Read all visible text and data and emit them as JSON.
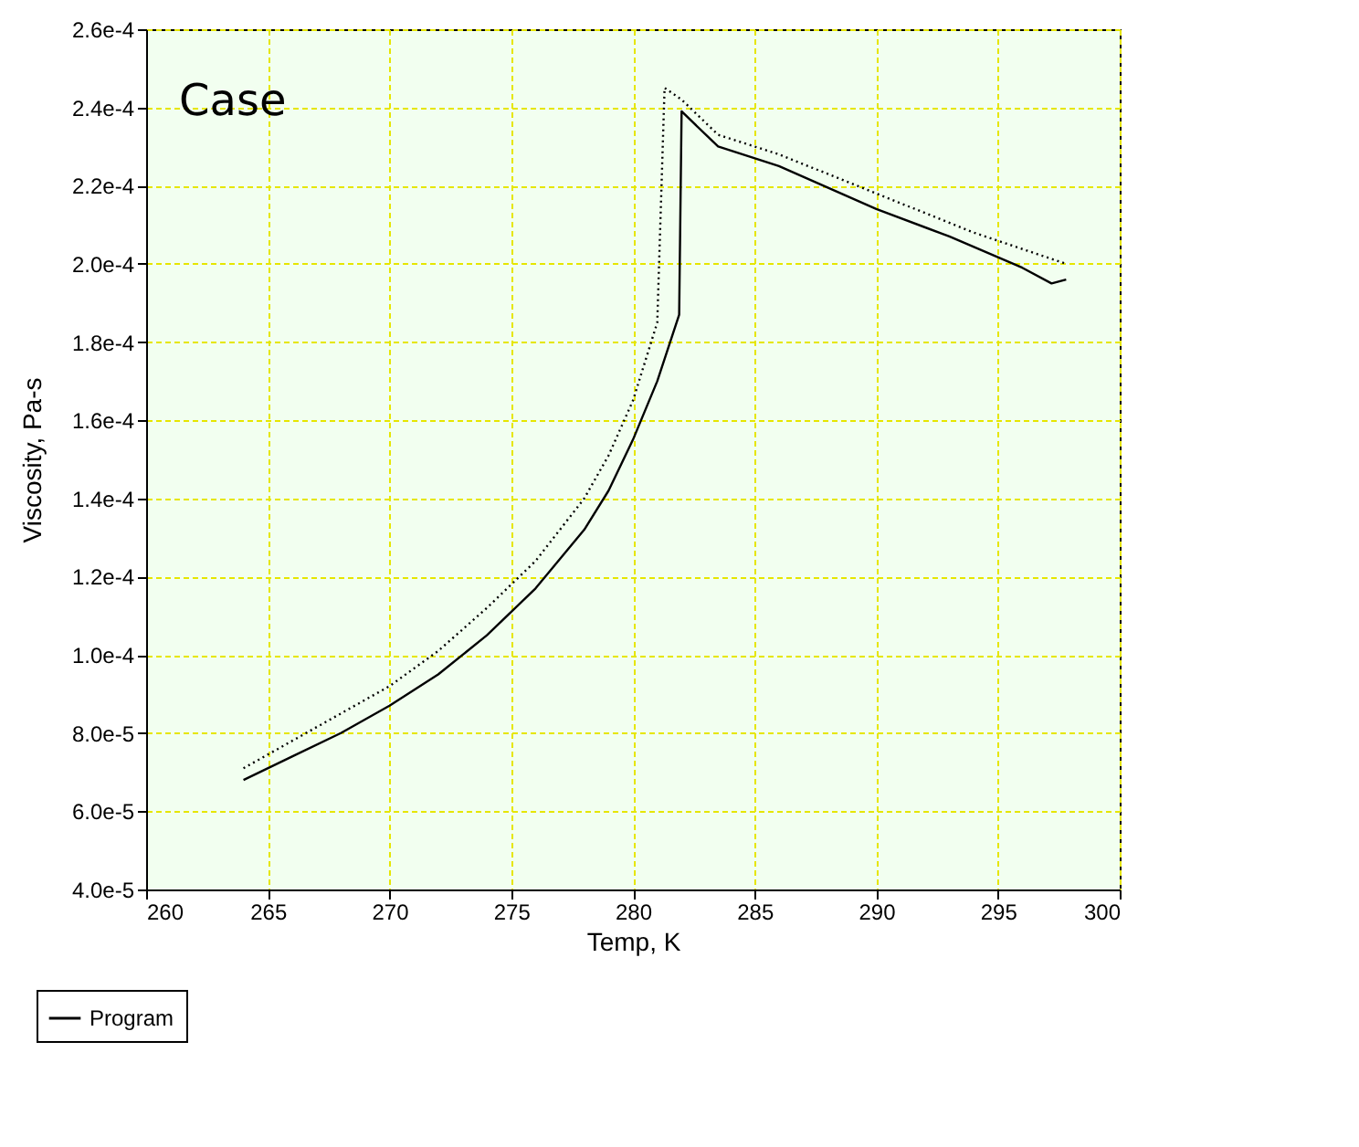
{
  "chart_data": {
    "type": "line",
    "xlabel": "Temp, K",
    "ylabel": "Viscosity, Pa-s",
    "annotations": [
      "Case"
    ],
    "xlim": [
      260,
      300
    ],
    "xticks": [
      260,
      265,
      270,
      275,
      280,
      285,
      290,
      295,
      300
    ],
    "ylim": [
      4e-05,
      0.00026
    ],
    "yticks": [
      {
        "value": 4e-05,
        "label": "4.0e-5"
      },
      {
        "value": 6e-05,
        "label": "6.0e-5"
      },
      {
        "value": 8e-05,
        "label": "8.0e-5"
      },
      {
        "value": 0.0001,
        "label": "1.0e-4"
      },
      {
        "value": 0.00012,
        "label": "1.2e-4"
      },
      {
        "value": 0.00014,
        "label": "1.4e-4"
      },
      {
        "value": 0.00016,
        "label": "1.6e-4"
      },
      {
        "value": 0.00018,
        "label": "1.8e-4"
      },
      {
        "value": 0.0002,
        "label": "2.0e-4"
      },
      {
        "value": 0.00022,
        "label": "2.2e-4"
      },
      {
        "value": 0.00024,
        "label": "2.4e-4"
      },
      {
        "value": 0.00026,
        "label": "2.6e-4"
      }
    ],
    "grid": true,
    "legend": "bottom left",
    "marker": "none",
    "series": [
      {
        "name": "Program",
        "color": "#000000",
        "line_style": "solid",
        "x": [
          264,
          266,
          268,
          270,
          272,
          274,
          276,
          278,
          279,
          280,
          281,
          281.9,
          282,
          283.5,
          286,
          290,
          293,
          296,
          297.2,
          297.8
        ],
        "values": [
          6.8e-05,
          7.4e-05,
          8e-05,
          8.7e-05,
          9.5e-05,
          0.000105,
          0.000117,
          0.000132,
          0.000142,
          0.000155,
          0.00017,
          0.000187,
          0.000239,
          0.00023,
          0.000225,
          0.000214,
          0.000207,
          0.000199,
          0.000195,
          0.000196
        ]
      },
      {
        "color": "#000000",
        "line_style": "dotted",
        "x": [
          264,
          266,
          268,
          270,
          272,
          274,
          276,
          278,
          279,
          280,
          281,
          281.3,
          282,
          283.5,
          286,
          290,
          294,
          297.8
        ],
        "values": [
          7.1e-05,
          7.8e-05,
          8.5e-05,
          9.2e-05,
          0.000101,
          0.000112,
          0.000124,
          0.00014,
          0.000151,
          0.000165,
          0.000185,
          0.000245,
          0.000242,
          0.000233,
          0.000228,
          0.000218,
          0.000208,
          0.0002
        ]
      }
    ]
  }
}
